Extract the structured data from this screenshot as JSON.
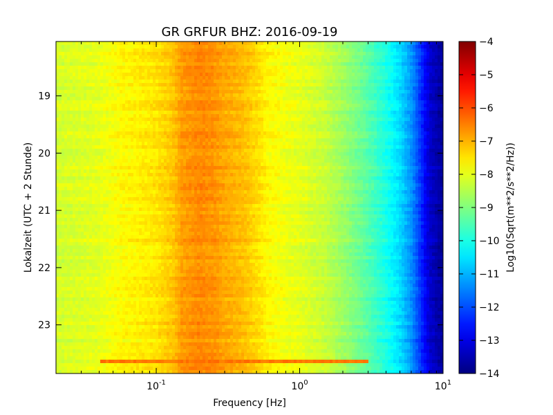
{
  "chart_data": {
    "type": "heatmap",
    "title": "GR GRFUR BHZ: 2016-09-19",
    "xlabel": "Frequency [Hz]",
    "ylabel": "Lokalzeit (UTC + 2 Stunde)",
    "x_scale": "log",
    "xlim": [
      0.02,
      10
    ],
    "ylim": [
      18.05,
      23.85
    ],
    "y_inverted": true,
    "x_ticks": [
      {
        "value": 0.1,
        "base": "10",
        "exp": "-1"
      },
      {
        "value": 1,
        "base": "10",
        "exp": "0"
      },
      {
        "value": 10,
        "base": "10",
        "exp": "1"
      }
    ],
    "y_ticks": [
      {
        "value": 19,
        "label": "19"
      },
      {
        "value": 20,
        "label": "20"
      },
      {
        "value": 21,
        "label": "21"
      },
      {
        "value": 22,
        "label": "22"
      },
      {
        "value": 23,
        "label": "23"
      }
    ],
    "colorbar": {
      "label": "Log10(Sqrt(m**2/s**2/Hz))",
      "range": [
        -14,
        -4
      ],
      "colormap": "jet",
      "ticks": [
        {
          "value": -4,
          "label": "−4"
        },
        {
          "value": -5,
          "label": "−5"
        },
        {
          "value": -6,
          "label": "−6"
        },
        {
          "value": -7,
          "label": "−7"
        },
        {
          "value": -8,
          "label": "−8"
        },
        {
          "value": -9,
          "label": "−9"
        },
        {
          "value": -10,
          "label": "−10"
        },
        {
          "value": -11,
          "label": "−11"
        },
        {
          "value": -12,
          "label": "−12"
        },
        {
          "value": -13,
          "label": "−13"
        },
        {
          "value": -14,
          "label": "−14"
        }
      ]
    },
    "spectrum_profile": [
      {
        "freq": 0.02,
        "value": -8.2
      },
      {
        "freq": 0.04,
        "value": -8.0
      },
      {
        "freq": 0.06,
        "value": -7.7
      },
      {
        "freq": 0.08,
        "value": -7.6
      },
      {
        "freq": 0.1,
        "value": -7.5
      },
      {
        "freq": 0.13,
        "value": -7.2
      },
      {
        "freq": 0.15,
        "value": -6.8
      },
      {
        "freq": 0.2,
        "value": -6.6
      },
      {
        "freq": 0.25,
        "value": -6.7
      },
      {
        "freq": 0.3,
        "value": -6.9
      },
      {
        "freq": 0.4,
        "value": -7.1
      },
      {
        "freq": 0.5,
        "value": -7.4
      },
      {
        "freq": 0.6,
        "value": -7.7
      },
      {
        "freq": 0.8,
        "value": -7.9
      },
      {
        "freq": 1.0,
        "value": -8.0
      },
      {
        "freq": 1.5,
        "value": -8.3
      },
      {
        "freq": 2.0,
        "value": -8.7
      },
      {
        "freq": 3.0,
        "value": -9.4
      },
      {
        "freq": 4.0,
        "value": -10.0
      },
      {
        "freq": 5.0,
        "value": -10.6
      },
      {
        "freq": 6.0,
        "value": -11.3
      },
      {
        "freq": 7.0,
        "value": -12.3
      },
      {
        "freq": 8.0,
        "value": -13.2
      },
      {
        "freq": 10.0,
        "value": -13.8
      }
    ],
    "event": {
      "time": 23.65,
      "freq_range": [
        0.04,
        3.0
      ],
      "value": -6.4
    }
  }
}
